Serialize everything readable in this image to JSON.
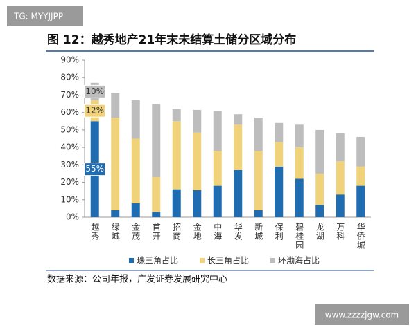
{
  "watermarks": {
    "top": "TG: MYYJJPP",
    "bottom": "www.zzzzjgw.com"
  },
  "chart_data": {
    "type": "stacked_bar",
    "title": "图 12：越秀地产21年末未结算土储分区域分布",
    "source": "数据来源：公司年报，广发证券发展研究中心",
    "categories": [
      "越秀",
      "绿城",
      "金茂",
      "首开",
      "招商",
      "金地",
      "中海",
      "华发",
      "新城",
      "保利",
      "碧桂园",
      "龙湖",
      "万科",
      "华侨城"
    ],
    "series": [
      {
        "name": "珠三角占比",
        "color": "#1f6cb0",
        "values": [
          55,
          4,
          8,
          3,
          16,
          15.5,
          18,
          27,
          4,
          29,
          22,
          7,
          13,
          18
        ],
        "value_labels": [
          "55%",
          null,
          null,
          null,
          null,
          null,
          null,
          null,
          null,
          null,
          null,
          null,
          null,
          null
        ]
      },
      {
        "name": "长三角占比",
        "color": "#f0d27a",
        "values": [
          12,
          53,
          37,
          20,
          39,
          33,
          20,
          26,
          34,
          14,
          18,
          18,
          19,
          11
        ],
        "value_labels": [
          "12%",
          null,
          null,
          null,
          null,
          null,
          null,
          null,
          null,
          null,
          null,
          null,
          null,
          null
        ]
      },
      {
        "name": "环渤海占比",
        "color": "#bdbdbd",
        "values": [
          10,
          14,
          22,
          42,
          7,
          13,
          23,
          6,
          19,
          11,
          13,
          25,
          16,
          17
        ],
        "value_labels": [
          "10%",
          null,
          null,
          null,
          null,
          null,
          null,
          null,
          null,
          null,
          null,
          null,
          null,
          null
        ]
      }
    ],
    "ylim": [
      0,
      90
    ],
    "yticks": [
      {
        "value": 0,
        "label": "0%"
      },
      {
        "value": 10,
        "label": "10%"
      },
      {
        "value": 20,
        "label": "20%"
      },
      {
        "value": 30,
        "label": "30%"
      },
      {
        "value": 40,
        "label": "40%"
      },
      {
        "value": 50,
        "label": "50%"
      },
      {
        "value": 60,
        "label": "60%"
      },
      {
        "value": 70,
        "label": "70%"
      },
      {
        "value": 80,
        "label": "80%"
      },
      {
        "value": 90,
        "label": "90%"
      }
    ],
    "legend": "bottom"
  }
}
